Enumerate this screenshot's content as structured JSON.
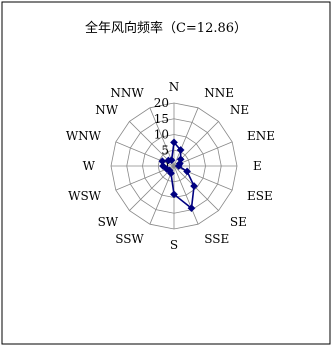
{
  "chart_data": {
    "type": "radar",
    "title": "全年风向频率（C=12.86）",
    "categories": [
      "N",
      "NNE",
      "NE",
      "ENE",
      "E",
      "ESE",
      "SE",
      "SSE",
      "S",
      "SSW",
      "SW",
      "WSW",
      "W",
      "WNW",
      "NW",
      "NNW"
    ],
    "series": [
      {
        "values": [
          7.5,
          5.5,
          3.0,
          2.0,
          1.5,
          4.5,
          9.0,
          14.5,
          9.0,
          2.5,
          2.0,
          2.5,
          3.5,
          4.0,
          2.5,
          2.0
        ]
      }
    ],
    "rlim": [
      0,
      20
    ],
    "rticks": [
      "0",
      "5",
      "10",
      "15",
      "20"
    ],
    "grid": true,
    "series_color": "#000080"
  }
}
